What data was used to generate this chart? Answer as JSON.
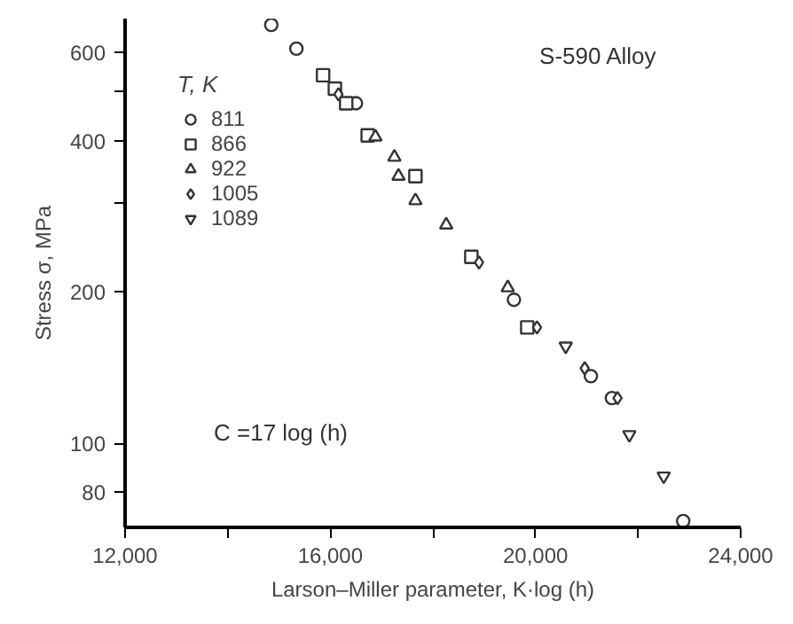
{
  "chart_data": {
    "type": "scatter",
    "xlabel": "Larson–Miller parameter, K·log (h)",
    "ylabel": "Stress σ, MPa",
    "legend_title": "T, K",
    "annotations": [
      "S-590 Alloy",
      "C =17 log (h)"
    ],
    "log": "y",
    "grid": false,
    "legend": "top left",
    "xlim": [
      12000,
      24000
    ],
    "ylim": [
      68,
      700
    ],
    "xticks": [
      {
        "value": 12000,
        "label": "12,000"
      },
      {
        "value": 14000,
        "label": null
      },
      {
        "value": 16000,
        "label": "16,000"
      },
      {
        "value": 18000,
        "label": null
      },
      {
        "value": 20000,
        "label": "20,000"
      },
      {
        "value": 22000,
        "label": null
      },
      {
        "value": 24000,
        "label": "24,000"
      }
    ],
    "yticks": [
      80,
      100,
      200,
      {
        "value": 300,
        "label": null
      },
      400,
      {
        "value": 500,
        "label": null
      },
      600
    ],
    "series": [
      {
        "name": "811",
        "color": "#333333",
        "marker": "circle",
        "x": [
          14850,
          15340,
          16500,
          19580,
          21080,
          21490,
          22880
        ],
        "values": [
          680,
          610,
          475,
          193,
          136,
          123,
          70
        ]
      },
      {
        "name": "866",
        "color": "#333333",
        "marker": "square",
        "x": [
          15860,
          16090,
          16310,
          16730,
          17660,
          18750,
          19840
        ],
        "values": [
          540,
          508,
          475,
          410,
          340,
          235,
          170
        ]
      },
      {
        "name": "922",
        "color": "#333333",
        "marker": "triangle",
        "x": [
          16880,
          17250,
          17330,
          17660,
          18260,
          19460
        ],
        "values": [
          407,
          371,
          340,
          304,
          272,
          204
        ]
      },
      {
        "name": "1005",
        "color": "#333333",
        "marker": "diamond",
        "x": [
          16160,
          18900,
          20030,
          20960,
          21600
        ],
        "values": [
          495,
          229,
          170,
          141,
          123
        ]
      },
      {
        "name": "1089",
        "color": "#333333",
        "x": [
          20590,
          21830,
          22500
        ],
        "values": [
          156,
          104,
          86
        ]
      }
    ]
  }
}
